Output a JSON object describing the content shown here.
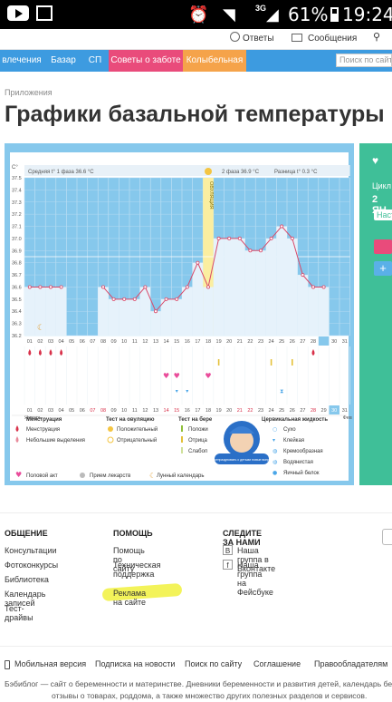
{
  "statusbar": {
    "network": "3G",
    "battery": "61%",
    "time": "19:24"
  },
  "topbar": {
    "answers": "Ответы",
    "messages": "Сообщения"
  },
  "nav": {
    "tabs": [
      "влечения",
      "Базар",
      "СП",
      "Советы о заботе",
      "Колыбельная"
    ],
    "tab_colors": [
      "#3d9be0",
      "#3d9be0",
      "#3d9be0",
      "#e94b7b",
      "#f5a34a"
    ],
    "search_placeholder": "Поиск по сайту"
  },
  "breadcrumb": "Приложения",
  "title": "Графики базальной температуры",
  "chart": {
    "y_unit": "С°",
    "phase1": "Средняя t° 1 фаза  36.6 °С",
    "phase2": "2 фаза  36.9 °С",
    "diff": "Разница t° 0.3 °С",
    "ovulation_label": "ОВУЛЯЦИЯ",
    "month_label": "Январь",
    "next_month_label": "Фев",
    "legend": {
      "menstruation_title": "Менструация",
      "menstruation": "Менструация",
      "spotting": "Небольшие выделения",
      "ovtest_title": "Тест на овуляцию",
      "positive": "Положительный",
      "negative": "Отрицательный",
      "pregtest_title": "Тест на бере",
      "preg_pos": "Положи",
      "preg_neg": "Отрица",
      "preg_weak": "Слабоп",
      "cervix_title": "Цервикальная жидкость",
      "dry": "Сухо",
      "sticky": "Клейкая",
      "creamy": "Кремообразная",
      "watery": "Водянистая",
      "eggwhite": "Яичный белок",
      "sex": "Половой акт",
      "pills": "Прием лекарств",
      "lunar": "Лунный календарь",
      "badge": "Как отпраздновать с детьми новые вопросы"
    }
  },
  "chart_data": {
    "type": "line",
    "title": "",
    "ylabel": "С°",
    "ylim": [
      36.2,
      37.5
    ],
    "ovulation_day": 18,
    "x": [
      "01",
      "02",
      "03",
      "04",
      "05",
      "06",
      "07",
      "08",
      "09",
      "10",
      "11",
      "12",
      "13",
      "14",
      "15",
      "16",
      "17",
      "18",
      "19",
      "20",
      "21",
      "22",
      "23",
      "24",
      "25",
      "26",
      "27",
      "28",
      "29",
      "30",
      "31"
    ],
    "series": [
      {
        "values": [
          36.6,
          36.6,
          36.6,
          36.6,
          null,
          null,
          null,
          36.6,
          36.5,
          36.5,
          36.5,
          36.6,
          36.4,
          36.5,
          36.5,
          36.6,
          36.8,
          36.6,
          37.0,
          37.0,
          37.0,
          36.9,
          36.9,
          37.0,
          37.1,
          37.0,
          36.7,
          36.6,
          36.6,
          null,
          null
        ]
      }
    ],
    "top_days": [
      "01",
      "02",
      "03",
      "04",
      "05",
      "06",
      "07",
      "08",
      "09",
      "10",
      "11",
      "12",
      "13",
      "14",
      "15",
      "16",
      "17",
      "18",
      "19",
      "20",
      "21",
      "22",
      "23",
      "24",
      "25",
      "26",
      "27",
      "28",
      "29",
      "30",
      "31"
    ],
    "top_days_row2": [
      "01",
      "02",
      "03",
      "04",
      "05",
      "06",
      "07",
      "08",
      "09",
      "10",
      "11",
      "12",
      "13"
    ],
    "yticks": [
      "37.5",
      "37.4",
      "37.3",
      "37.2",
      "37.1",
      "37.0",
      "36.9",
      "36.8",
      "36.7",
      "36.6",
      "36.5",
      "36.4",
      "36.3",
      "36.2"
    ]
  },
  "side": {
    "day_label": "Цикл",
    "date": "2 ЯН",
    "settings": "Наст"
  },
  "footer": {
    "col1_title": "ОБЩЕНИЕ",
    "col1": [
      "Консультации",
      "Фотоконкурсы",
      "Библиотека",
      "Календарь записей",
      "Тест-драйвы"
    ],
    "col2_title": "ПОМОЩЬ",
    "col2": [
      "Помощь по сайту",
      "Техническая поддержка",
      "Реклама на сайте"
    ],
    "col3_title": "СЛЕДИТЕ ЗА НАМИ",
    "col3": [
      "Наша группа в Вконтакте",
      "Наша группа на Фейсбуке"
    ],
    "bottom_links": [
      "Мобильная версия",
      "Подписка на новости",
      "Поиск по сайту",
      "Соглашение",
      "Правообладателям"
    ],
    "about_line1": "Бэбиблог — сайт о беременности и материнстве. Дневники беременности и развития детей, календарь беременности,",
    "about_line2": "отзывы о товарах, роддома, а также множество других полезных разделов и сервисов."
  }
}
